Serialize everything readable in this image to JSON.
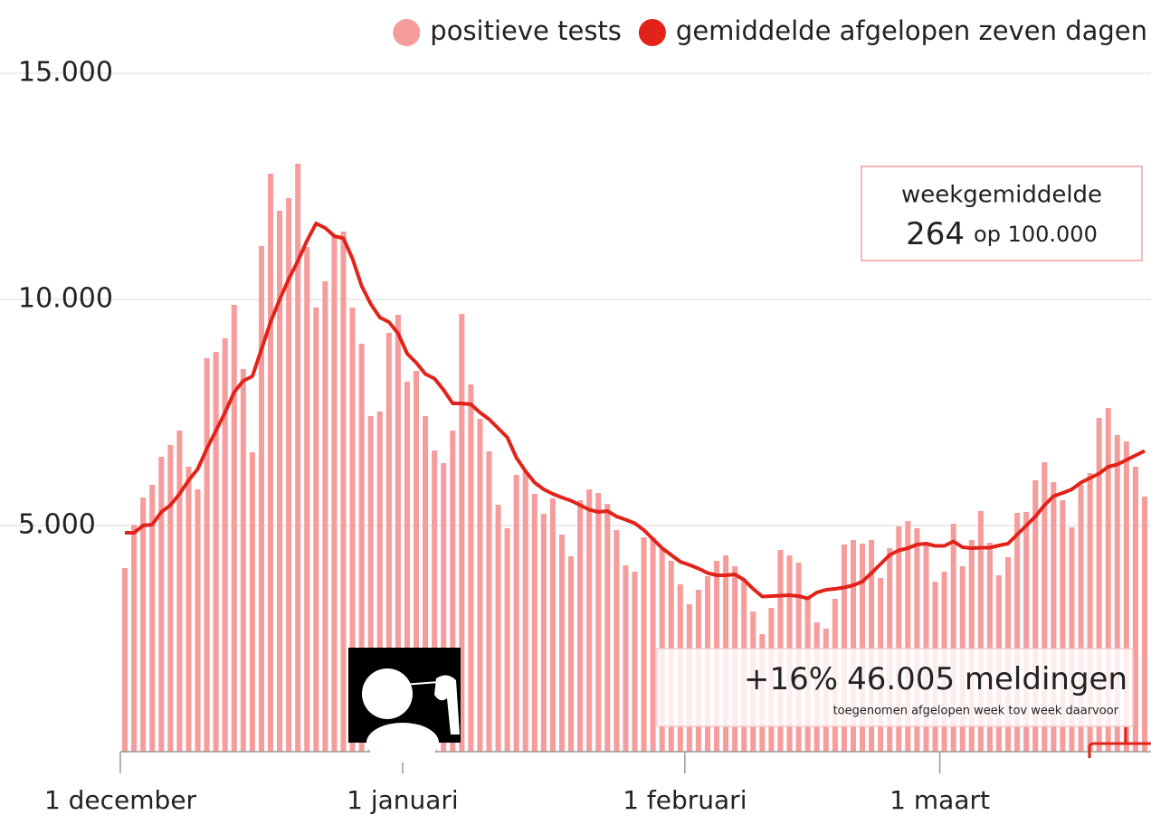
{
  "chart_data": {
    "type": "bar",
    "x": [
      0,
      1,
      2,
      3,
      4,
      5,
      6,
      7,
      8,
      9,
      10,
      11,
      12,
      13,
      14,
      15,
      16,
      17,
      18,
      19,
      20,
      21,
      22,
      23,
      24,
      25,
      26,
      27,
      28,
      29,
      30,
      31,
      32,
      33,
      34,
      35,
      36,
      37,
      38,
      39,
      40,
      41,
      42,
      43,
      44,
      45,
      46,
      47,
      48,
      49,
      50,
      51,
      52,
      53,
      54,
      55,
      56,
      57,
      58,
      59,
      60,
      61,
      62,
      63,
      64,
      65,
      66,
      67,
      68,
      69,
      70,
      71,
      72,
      73,
      74,
      75,
      76,
      77,
      78,
      79,
      80,
      81,
      82,
      83,
      84,
      85,
      86,
      87,
      88,
      89,
      90,
      91,
      92,
      93,
      94,
      95,
      96,
      97,
      98,
      99,
      100,
      101,
      102,
      103,
      104,
      105,
      106,
      107,
      108,
      109,
      110,
      111,
      112
    ],
    "series": [
      {
        "name": "positieve tests",
        "type": "bar",
        "color": "#f59c9c",
        "values": [
          4060,
          5020,
          5620,
          5900,
          6520,
          6780,
          7100,
          6300,
          5800,
          8700,
          8840,
          9140,
          9880,
          8460,
          6620,
          11180,
          12780,
          11960,
          12240,
          13000,
          11160,
          9820,
          10400,
          11400,
          11500,
          9820,
          9020,
          7420,
          7520,
          9260,
          9660,
          8180,
          8420,
          7420,
          6660,
          6380,
          7100,
          9680,
          8120,
          7360,
          6640,
          5460,
          4940,
          6120,
          6200,
          5700,
          5260,
          5600,
          4800,
          4320,
          5560,
          5800,
          5720,
          5480,
          4900,
          4120,
          3980,
          4740,
          4740,
          4480,
          4220,
          3700,
          3260,
          3580,
          3880,
          4220,
          4340,
          4100,
          3820,
          3100,
          2600,
          3180,
          4460,
          4340,
          4180,
          3420,
          2860,
          2720,
          3380,
          4580,
          4680,
          4600,
          4680,
          3840,
          4500,
          4980,
          5100,
          4940,
          4620,
          3760,
          3980,
          5040,
          4100,
          4680,
          5320,
          4620,
          3900,
          4300,
          5280,
          5300,
          6000,
          6400,
          5960,
          5560,
          4960,
          5900,
          6160,
          7380,
          7600,
          7000,
          6860,
          6300,
          5640
        ]
      },
      {
        "name": "gemiddelde afgelopen zeven dagen",
        "type": "line",
        "color": "#e2231a",
        "values": [
          4840,
          4840,
          5000,
          5020,
          5300,
          5450,
          5700,
          6000,
          6250,
          6700,
          7100,
          7500,
          7950,
          8200,
          8300,
          8900,
          9500,
          10000,
          10450,
          10850,
          11300,
          11680,
          11580,
          11400,
          11350,
          10900,
          10300,
          9900,
          9600,
          9500,
          9250,
          8800,
          8600,
          8350,
          8250,
          8000,
          7700,
          7700,
          7680,
          7500,
          7350,
          7150,
          6950,
          6500,
          6200,
          5950,
          5800,
          5700,
          5620,
          5550,
          5450,
          5350,
          5300,
          5320,
          5200,
          5130,
          5050,
          4900,
          4700,
          4500,
          4350,
          4200,
          4130,
          4050,
          3950,
          3900,
          3900,
          3920,
          3800,
          3600,
          3430,
          3440,
          3450,
          3460,
          3440,
          3390,
          3520,
          3580,
          3600,
          3630,
          3680,
          3760,
          3950,
          4150,
          4350,
          4450,
          4500,
          4580,
          4600,
          4550,
          4550,
          4650,
          4520,
          4500,
          4510,
          4510,
          4560,
          4600,
          4800,
          5000,
          5200,
          5450,
          5650,
          5720,
          5800,
          5950,
          6050,
          6150,
          6300,
          6350,
          6450,
          6550,
          6650
        ]
      }
    ],
    "xlim": [
      0,
      113
    ],
    "xticks": [
      {
        "value": 0,
        "label": "1 december"
      },
      {
        "value": 31,
        "label": "1 januari"
      },
      {
        "value": 62,
        "label": "1 februari"
      },
      {
        "value": 90,
        "label": "1 maart"
      }
    ],
    "ylim": [
      0,
      15000
    ],
    "yticks": [
      {
        "value": 5000,
        "label": "5.000"
      },
      {
        "value": 10000,
        "label": "10.000"
      },
      {
        "value": 15000,
        "label": "15.000"
      }
    ],
    "grid": true,
    "legend": "top-right",
    "annotations": {
      "week_title": "weekgemiddelde",
      "week_value": "264",
      "week_unit": "op 100.000",
      "change": "+16%",
      "reports": "46.005 meldingen",
      "reports_note": "toegenomen afgelopen week tov week daarvoor"
    }
  }
}
